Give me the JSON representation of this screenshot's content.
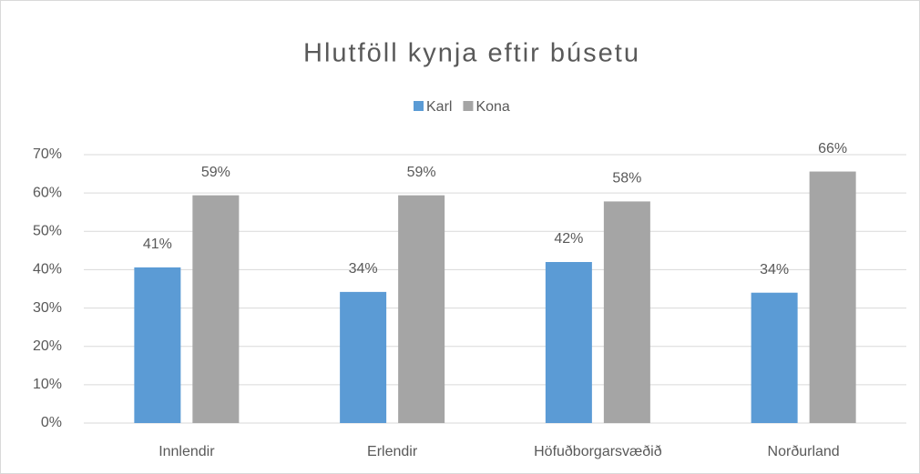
{
  "chart_data": {
    "type": "bar",
    "title": "Hlutföll kynja eftir búsetu",
    "categories": [
      "Innlendir",
      "Erlendir",
      "Höfuðborgarsvæðið",
      "Norðurland"
    ],
    "series": [
      {
        "name": "Karl",
        "color": "#5b9bd5",
        "values": [
          40.6,
          34.2,
          42.0,
          34.0
        ],
        "value_labels": [
          "41%",
          "34%",
          "42%",
          "34%"
        ]
      },
      {
        "name": "Kona",
        "color": "#a5a5a5",
        "values": [
          59.4,
          59.4,
          57.8,
          65.6
        ],
        "value_labels": [
          "59%",
          "59%",
          "58%",
          "66%"
        ]
      }
    ],
    "ylim": [
      0,
      70
    ],
    "yticks": [
      {
        "value": 0,
        "label": "0%"
      },
      {
        "value": 10,
        "label": "10%"
      },
      {
        "value": 20,
        "label": "20%"
      },
      {
        "value": 30,
        "label": "30%"
      },
      {
        "value": 40,
        "label": "40%"
      },
      {
        "value": 50,
        "label": "50%"
      },
      {
        "value": 60,
        "label": "60%"
      },
      {
        "value": 70,
        "label": "70%"
      }
    ],
    "grid": true,
    "legend": "top"
  }
}
